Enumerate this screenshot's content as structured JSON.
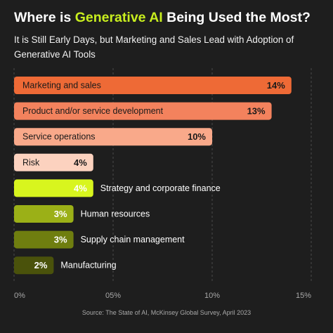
{
  "title": {
    "prefix": "Where is ",
    "highlight": "Generative AI",
    "suffix": " Being Used the Most?"
  },
  "subtitle": "It is Still Early Days, but Marketing and Sales Lead with Adoption of Generative AI Tools",
  "source": "Source: The State of AI, McKinsey Global Survey, April 2023",
  "colors": {
    "background": "#1e1e1e",
    "title_highlight": "#c8ee1e"
  },
  "chart_data": {
    "type": "bar",
    "orientation": "horizontal",
    "categories": [
      "Marketing and sales",
      "Product and/or service development",
      "Service operations",
      "Risk",
      "Strategy and corporate finance",
      "Human resources",
      "Supply chain management",
      "Manufacturing"
    ],
    "values": [
      14,
      13,
      10,
      4,
      4,
      3,
      3,
      2
    ],
    "value_labels": [
      "14%",
      "13%",
      "10%",
      "4%",
      "4%",
      "3%",
      "3%",
      "2%"
    ],
    "bar_colors": [
      "#ee6a36",
      "#f3825d",
      "#f9a98a",
      "#fcd2bf",
      "#d8f51e",
      "#9bb017",
      "#6f7e0f",
      "#4a520b"
    ],
    "label_colors": [
      "#1a1a1a",
      "#1a1a1a",
      "#1a1a1a",
      "#1a1a1a",
      "#ffffff",
      "#ffffff",
      "#ffffff",
      "#ffffff"
    ],
    "xlim": [
      0,
      15
    ],
    "xticks": [
      0,
      5,
      10,
      15
    ],
    "xtick_labels": [
      "0%",
      "05%",
      "10%",
      "15%"
    ],
    "grid": true
  }
}
